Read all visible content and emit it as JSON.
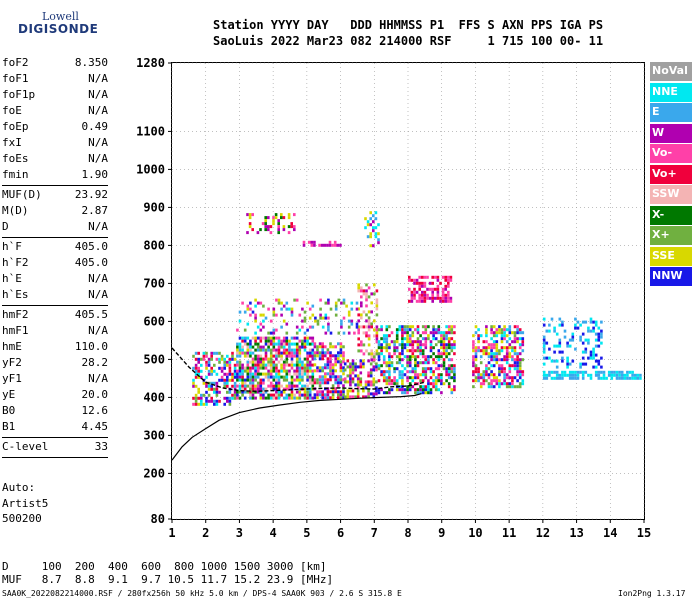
{
  "logo": {
    "line1": "Lowell",
    "line2": "DIGISONDE"
  },
  "header": {
    "line1": "Station YYYY DAY   DDD HHMMSS P1  FFS S AXN PPS IGA PS",
    "line2": "SaoLuis 2022 Mar23 082 214000 RSF     1 715 100 00- 11"
  },
  "params": [
    {
      "k": "foF2",
      "v": "8.350"
    },
    {
      "k": "foF1",
      "v": "N/A"
    },
    {
      "k": "foF1p",
      "v": "N/A"
    },
    {
      "k": "foE",
      "v": "N/A"
    },
    {
      "k": "foEp",
      "v": "0.49"
    },
    {
      "k": "fxI",
      "v": "N/A"
    },
    {
      "k": "foEs",
      "v": "N/A"
    },
    {
      "k": "fmin",
      "v": "1.90"
    },
    {
      "sep": true
    },
    {
      "k": "MUF(D)",
      "v": "23.92"
    },
    {
      "k": "M(D)",
      "v": "2.87"
    },
    {
      "k": "D",
      "v": "N/A"
    },
    {
      "sep": true
    },
    {
      "k": "h`F",
      "v": "405.0"
    },
    {
      "k": "h`F2",
      "v": "405.0"
    },
    {
      "k": "h`E",
      "v": "N/A"
    },
    {
      "k": "h`Es",
      "v": "N/A"
    },
    {
      "sep": true
    },
    {
      "k": "hmF2",
      "v": "405.5"
    },
    {
      "k": "hmF1",
      "v": "N/A"
    },
    {
      "k": "hmE",
      "v": "110.0"
    },
    {
      "k": "yF2",
      "v": "28.2"
    },
    {
      "k": "yF1",
      "v": "N/A"
    },
    {
      "k": "yE",
      "v": "20.0"
    },
    {
      "k": "B0",
      "v": "12.6"
    },
    {
      "k": "B1",
      "v": "4.45"
    },
    {
      "sep": true
    },
    {
      "k": "C-level",
      "v": "33"
    },
    {
      "sep": true
    }
  ],
  "auto": {
    "line1": "Auto:",
    "line2": "Artist5",
    "line3": "500200"
  },
  "muf_table": {
    "d_line": "D     100  200  400  600  800 1000 1500 3000 [km]",
    "muf_line": "MUF   8.7  8.8  9.1  9.7 10.5 11.7 15.2 23.9 [MHz]"
  },
  "footer": {
    "left": "SAA0K_2022082214000.RSF / 280fx256h 50 kHz 5.0 km / DPS-4 SAA0K 903 / 2.6 S 315.8 E",
    "right": "Ion2Png 1.3.17"
  },
  "legend": [
    {
      "label": "NoVal",
      "color": "#a0a0a0"
    },
    {
      "label": "NNE",
      "color": "#00e8f0"
    },
    {
      "label": "E",
      "color": "#3aa8ec"
    },
    {
      "label": "W",
      "color": "#b000b0"
    },
    {
      "label": "Vo-",
      "color": "#ff40a8"
    },
    {
      "label": "Vo+",
      "color": "#f0003c"
    },
    {
      "label": "SSW",
      "color": "#f4b4b4"
    },
    {
      "label": "X-",
      "color": "#007800"
    },
    {
      "label": "X+",
      "color": "#70b040"
    },
    {
      "label": "SSE",
      "color": "#d8d800"
    },
    {
      "label": "NNW",
      "color": "#1818e8"
    }
  ],
  "chart_data": {
    "type": "scatter",
    "title": "",
    "xlabel": "",
    "ylabel": "",
    "xlim": [
      1,
      15
    ],
    "ylim": [
      80,
      1280
    ],
    "x_ticks": [
      1,
      2,
      3,
      4,
      5,
      6,
      7,
      8,
      9,
      10,
      11,
      12,
      13,
      14,
      15
    ],
    "x_tick_labels": [
      "1",
      "2",
      "3",
      "4",
      "5",
      "6",
      "7",
      "8",
      "9",
      "10",
      "11",
      "12",
      "13",
      "14",
      "15"
    ],
    "y_ticks": [
      80,
      200,
      300,
      400,
      500,
      600,
      700,
      800,
      900,
      1000,
      1100,
      1280
    ],
    "y_tick_labels": [
      "80",
      "200",
      "300",
      "400",
      "500",
      "600",
      "700",
      "800",
      "900",
      "1000",
      "1100",
      "1280"
    ],
    "clusters": [
      {
        "x": [
          1.6,
          2.9
        ],
        "y": [
          385,
          520
        ],
        "density": 0.55,
        "colors": [
          "NNW",
          "W",
          "Vo-",
          "Vo+",
          "SSE",
          "X+",
          "NNE",
          "E"
        ]
      },
      {
        "x": [
          2.9,
          5.2
        ],
        "y": [
          395,
          560
        ],
        "density": 0.75,
        "colors": [
          "Vo-",
          "W",
          "Vo+",
          "NNW",
          "SSE",
          "X-",
          "X+",
          "E",
          "NNE",
          "SSW"
        ]
      },
      {
        "x": [
          5.2,
          6.1
        ],
        "y": [
          400,
          545
        ],
        "density": 0.7,
        "colors": [
          "Vo-",
          "W",
          "Vo+",
          "NNW",
          "X+",
          "SSE",
          "E"
        ]
      },
      {
        "x": [
          6.1,
          7.1
        ],
        "y": [
          400,
          500
        ],
        "density": 0.55,
        "colors": [
          "Vo-",
          "W",
          "Vo+",
          "SSE",
          "X+",
          "NNW"
        ]
      },
      {
        "x": [
          6.5,
          7.1
        ],
        "y": [
          500,
          700
        ],
        "density": 0.4,
        "colors": [
          "Vo-",
          "W",
          "Vo+",
          "SSE",
          "X+",
          "SSW"
        ]
      },
      {
        "x": [
          7.1,
          9.4
        ],
        "y": [
          410,
          590
        ],
        "density": 0.6,
        "colors": [
          "W",
          "Vo-",
          "Vo+",
          "NNW",
          "E",
          "NNE",
          "SSE",
          "X+",
          "X-"
        ]
      },
      {
        "x": [
          8.0,
          9.3
        ],
        "y": [
          650,
          720
        ],
        "density": 0.55,
        "colors": [
          "W",
          "Vo-",
          "Vo+"
        ]
      },
      {
        "x": [
          9.9,
          11.4
        ],
        "y": [
          430,
          590
        ],
        "density": 0.6,
        "colors": [
          "Vo+",
          "Vo-",
          "W",
          "NNE",
          "E",
          "SSE",
          "X+",
          "NNW"
        ]
      },
      {
        "x": [
          2.9,
          6.5
        ],
        "y": [
          570,
          660
        ],
        "density": 0.22,
        "colors": [
          "NNE",
          "E",
          "SSE",
          "X+",
          "NNW",
          "Vo-",
          "W"
        ]
      },
      {
        "x": [
          3.2,
          4.6
        ],
        "y": [
          835,
          885
        ],
        "density": 0.3,
        "colors": [
          "W",
          "Vo-",
          "Vo+",
          "X-",
          "SSE"
        ]
      },
      {
        "x": [
          4.8,
          6.0
        ],
        "y": [
          802,
          812
        ],
        "density": 0.55,
        "colors": [
          "W",
          "Vo-"
        ]
      },
      {
        "x": [
          6.7,
          7.1
        ],
        "y": [
          800,
          890
        ],
        "density": 0.3,
        "colors": [
          "NNE",
          "E",
          "W",
          "SSE"
        ]
      },
      {
        "x": [
          12.0,
          13.7
        ],
        "y": [
          480,
          610
        ],
        "density": 0.28,
        "colors": [
          "NNE",
          "E",
          "NNW"
        ]
      },
      {
        "x": [
          12.0,
          14.9
        ],
        "y": [
          448,
          470
        ],
        "density": 0.7,
        "colors": [
          "NNE",
          "E"
        ]
      }
    ],
    "trace_curve": {
      "x": [
        1.0,
        1.3,
        1.6,
        2.0,
        2.4,
        3.0,
        3.6,
        4.2,
        4.8,
        5.4,
        6.0,
        6.6,
        7.2,
        7.8,
        8.2,
        8.4
      ],
      "y": [
        235,
        270,
        295,
        318,
        340,
        360,
        372,
        380,
        387,
        392,
        395,
        398,
        400,
        402,
        405,
        410
      ]
    },
    "virtual_curve": {
      "x": [
        1.0,
        1.5,
        2.0,
        2.5,
        3.0,
        3.5,
        4.0,
        4.5,
        5.0,
        5.5,
        6.0,
        6.5,
        7.0,
        7.5,
        8.0,
        8.5
      ],
      "y": [
        530,
        480,
        440,
        425,
        418,
        416,
        418,
        420,
        422,
        424,
        425,
        423,
        422,
        428,
        430,
        440
      ]
    }
  }
}
